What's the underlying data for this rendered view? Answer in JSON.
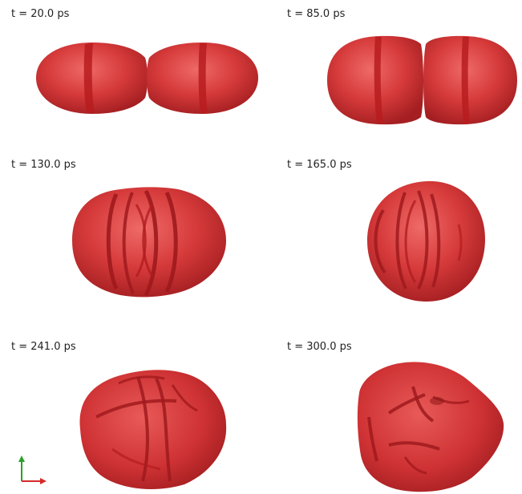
{
  "panels": [
    {
      "label": "t = 20.0 ps"
    },
    {
      "label": "t = 85.0 ps"
    },
    {
      "label": "t = 130.0 ps"
    },
    {
      "label": "t = 165.0 ps"
    },
    {
      "label": "t = 241.0 ps"
    },
    {
      "label": "t = 300.0 ps"
    }
  ],
  "colors": {
    "body": "#d63a3a",
    "body_dark": "#a51f22",
    "seam": "#b71c1f",
    "axis_y": "#2aa02a",
    "axis_x": "#d42a2a"
  }
}
